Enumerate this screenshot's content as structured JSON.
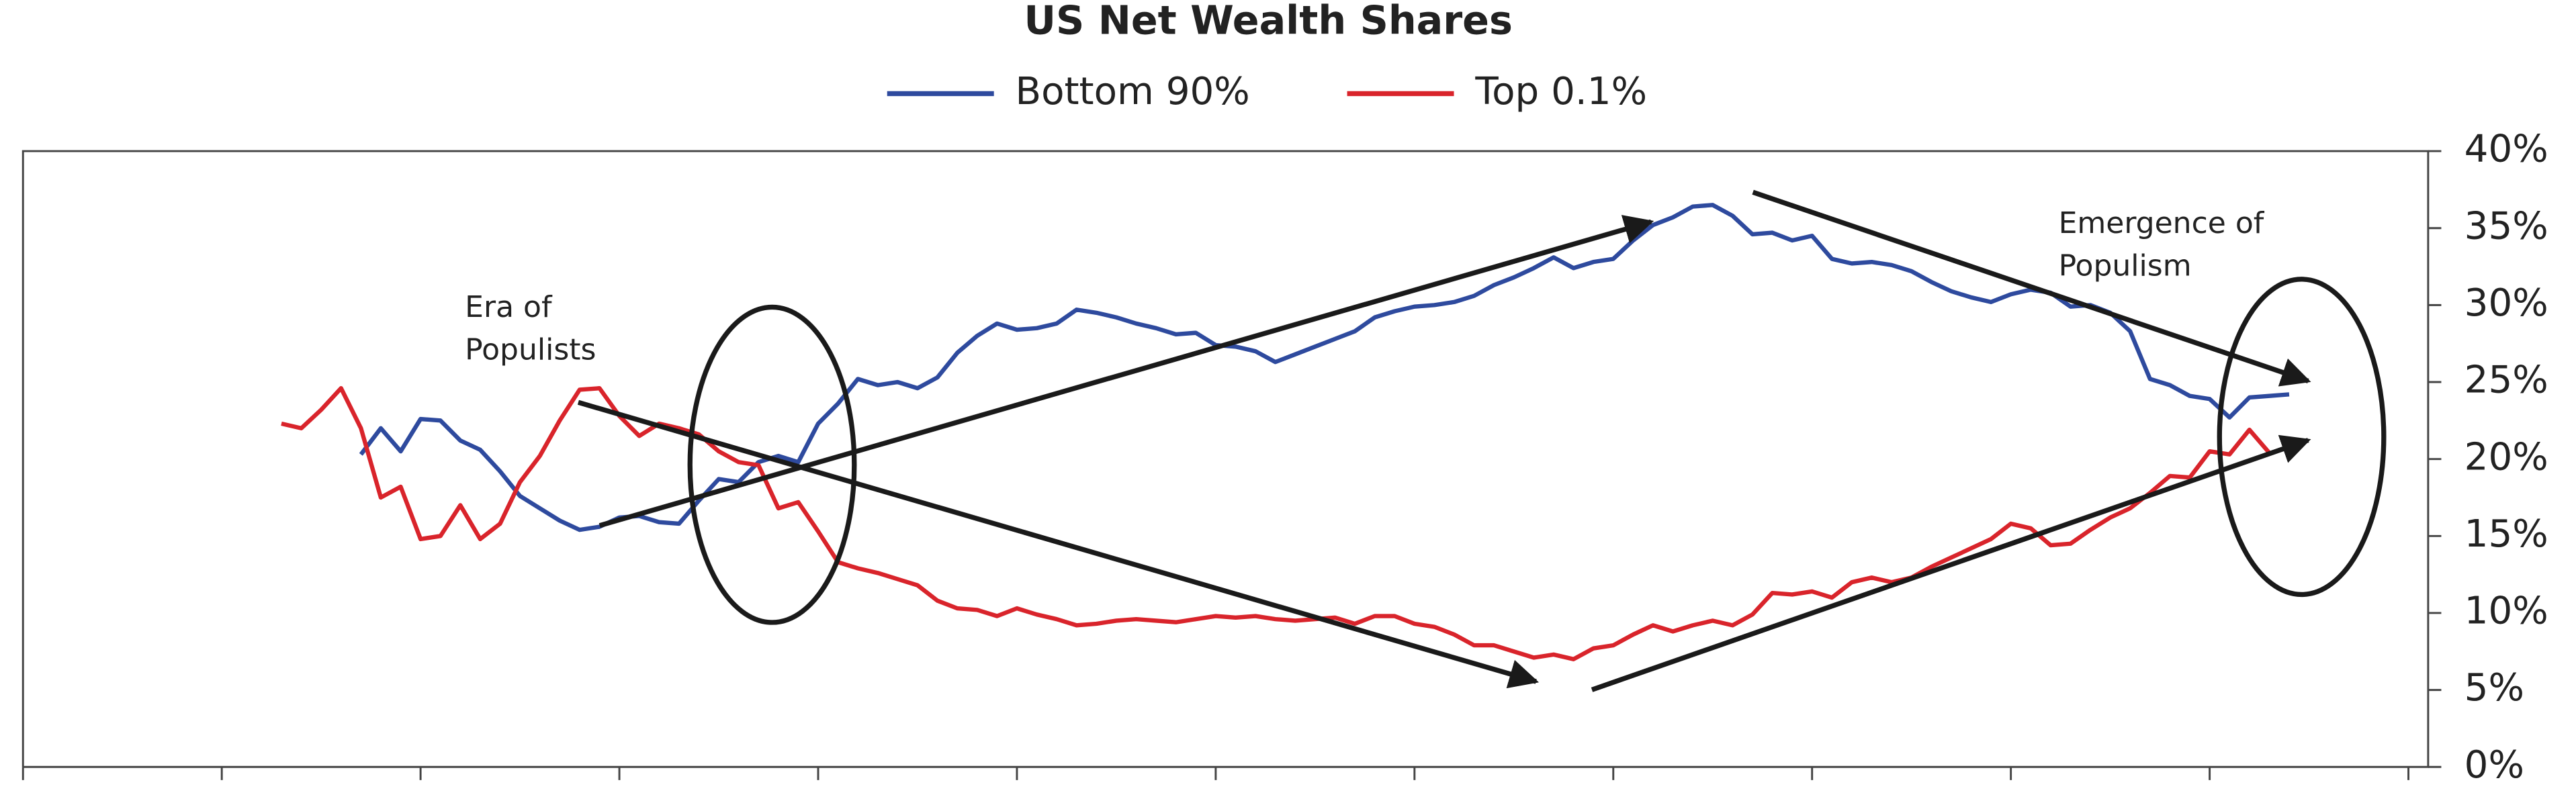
{
  "chart_data": {
    "type": "line",
    "title": "US Net Wealth Shares",
    "categories": [
      null,
      null,
      null,
      null,
      null,
      null,
      null,
      null,
      null,
      null,
      null,
      null,
      null,
      null,
      null,
      null,
      null,
      null,
      null,
      null,
      null,
      null,
      null,
      null,
      null,
      null,
      null,
      null,
      null,
      null,
      null,
      null,
      null,
      null,
      null,
      null,
      null,
      null,
      null,
      null,
      null,
      null,
      null,
      null,
      null,
      null,
      null,
      null,
      null,
      null,
      null,
      null,
      null,
      null,
      null,
      null,
      null,
      null,
      null,
      null,
      null,
      null,
      null,
      null,
      null,
      null,
      null,
      null,
      null,
      null,
      null,
      null,
      null,
      null,
      null,
      null,
      null,
      null,
      null,
      null,
      null,
      null,
      null,
      null,
      null,
      null,
      null,
      null,
      null,
      null,
      null,
      null,
      null,
      null,
      null,
      null,
      null,
      null,
      null,
      null,
      null,
      null
    ],
    "series": [
      {
        "name": "Bottom 90%",
        "color": "#2e4a9e",
        "values": [
          null,
          null,
          null,
          null,
          20.3,
          22.0,
          20.5,
          22.6,
          22.5,
          21.2,
          20.6,
          19.2,
          17.6,
          16.8,
          16.0,
          15.4,
          15.6,
          16.2,
          16.3,
          15.9,
          15.8,
          17.3,
          18.7,
          18.5,
          19.8,
          20.2,
          19.8,
          22.3,
          23.6,
          25.2,
          24.8,
          25.0,
          24.6,
          25.3,
          26.9,
          28.0,
          28.8,
          28.4,
          28.5,
          28.8,
          29.7,
          29.5,
          29.2,
          28.8,
          28.5,
          28.1,
          28.2,
          27.4,
          27.3,
          27.0,
          26.3,
          26.8,
          27.3,
          27.8,
          28.3,
          29.2,
          29.6,
          29.9,
          30.0,
          30.2,
          30.6,
          31.3,
          31.8,
          32.4,
          33.1,
          32.4,
          32.8,
          33.0,
          34.2,
          35.2,
          35.7,
          36.4,
          36.5,
          35.8,
          34.6,
          34.7,
          34.2,
          34.5,
          33.0,
          32.7,
          32.8,
          32.6,
          32.2,
          31.5,
          30.9,
          30.5,
          30.2,
          30.7,
          31.0,
          30.8,
          29.9,
          30.0,
          29.5,
          28.3,
          25.2,
          24.8,
          24.1,
          23.9,
          22.7,
          24.0,
          24.1,
          24.2
        ]
      },
      {
        "name": "Top 0.1%",
        "color": "#d9242b",
        "values": [
          22.3,
          22.0,
          23.2,
          24.6,
          22.0,
          17.5,
          18.2,
          14.8,
          15.0,
          17.0,
          14.8,
          15.8,
          18.5,
          20.2,
          22.5,
          24.5,
          24.6,
          22.8,
          21.5,
          22.3,
          22.0,
          21.6,
          20.5,
          19.8,
          19.6,
          16.8,
          17.2,
          15.3,
          13.3,
          12.9,
          12.6,
          12.2,
          11.8,
          10.8,
          10.3,
          10.2,
          9.8,
          10.3,
          9.9,
          9.6,
          9.2,
          9.3,
          9.5,
          9.6,
          9.5,
          9.4,
          9.6,
          9.8,
          9.7,
          9.8,
          9.6,
          9.5,
          9.6,
          9.7,
          9.3,
          9.8,
          9.8,
          9.3,
          9.1,
          8.6,
          7.9,
          7.9,
          7.5,
          7.1,
          7.3,
          7.0,
          7.7,
          7.9,
          8.6,
          9.2,
          8.8,
          9.2,
          9.5,
          9.2,
          9.9,
          11.3,
          11.2,
          11.4,
          11.0,
          12.0,
          12.3,
          12.0,
          12.3,
          13.0,
          13.6,
          14.2,
          14.8,
          15.8,
          15.5,
          14.4,
          14.5,
          15.4,
          16.2,
          16.8,
          17.8,
          18.9,
          18.8,
          20.5,
          20.3,
          21.9,
          20.4,
          null
        ]
      }
    ],
    "ylim": [
      0,
      40
    ],
    "yticks": [
      {
        "value": 0,
        "label": "0%"
      },
      {
        "value": 5,
        "label": "5%"
      },
      {
        "value": 10,
        "label": "10%"
      },
      {
        "value": 15,
        "label": "15%"
      },
      {
        "value": 20,
        "label": "20%"
      },
      {
        "value": 25,
        "label": "25%"
      },
      {
        "value": 30,
        "label": "30%"
      },
      {
        "value": 35,
        "label": "35%"
      },
      {
        "value": 40,
        "label": "40%"
      }
    ],
    "annotations": [
      {
        "lines": [
          "Era of",
          "Populists"
        ]
      },
      {
        "lines": [
          "Emergence of",
          "Populism"
        ]
      }
    ]
  }
}
